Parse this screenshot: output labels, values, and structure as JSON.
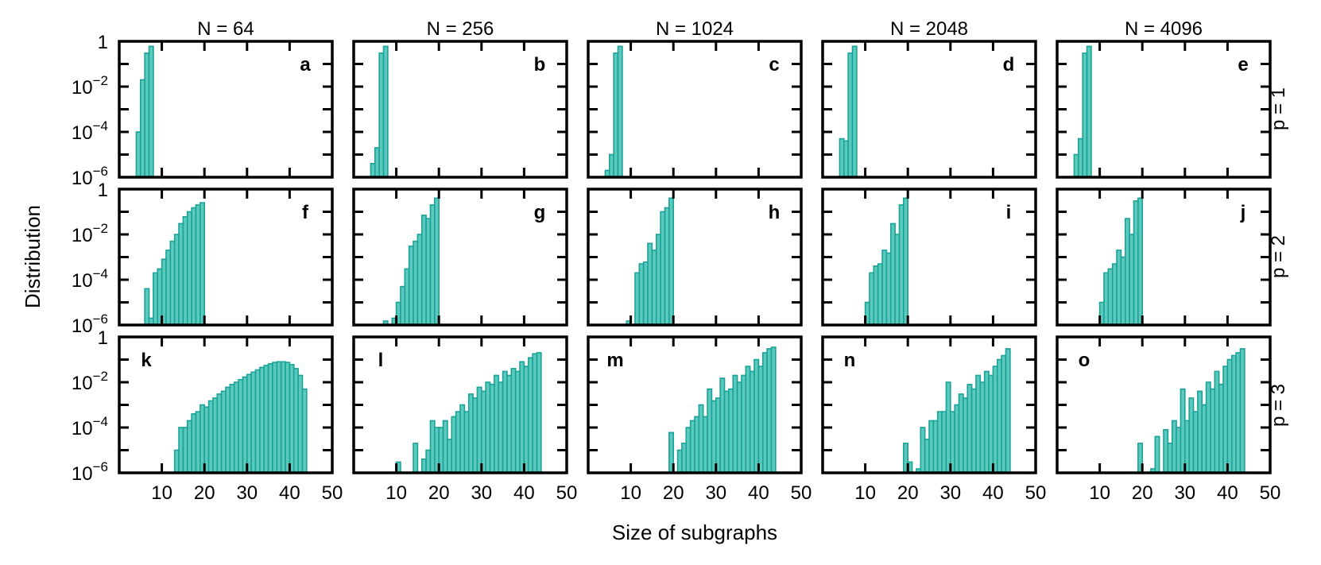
{
  "figure": {
    "xlabel": "Size of subgraphs",
    "ylabel": "Distribution",
    "bar_color": "#5cc9bd",
    "bar_edge_color": "#19a398"
  },
  "columns": [
    "N = 64",
    "N = 256",
    "N = 1024",
    "N = 2048",
    "N = 4096"
  ],
  "rows": [
    "p = 1",
    "p = 2",
    "p = 3"
  ],
  "chart_data": [
    {
      "type": "bar",
      "panel": "a",
      "title": "N = 64",
      "row": "p = 1",
      "xlabel": "Size of subgraphs",
      "ylabel": "Distribution",
      "xlim": [
        0,
        50
      ],
      "ylim": [
        1e-06,
        1
      ],
      "yscale": "log",
      "bin_width": 1,
      "x": [
        4,
        5,
        6,
        7
      ],
      "values": [
        0.0001,
        0.02,
        0.3,
        0.6
      ]
    },
    {
      "type": "bar",
      "panel": "b",
      "title": "N = 256",
      "row": "p = 1",
      "xlabel": "Size of subgraphs",
      "ylabel": "Distribution",
      "xlim": [
        0,
        50
      ],
      "ylim": [
        1e-06,
        1
      ],
      "yscale": "log",
      "bin_width": 1,
      "x": [
        4,
        5,
        6,
        7
      ],
      "values": [
        4e-06,
        2e-05,
        0.3,
        0.6
      ]
    },
    {
      "type": "bar",
      "panel": "c",
      "title": "N = 1024",
      "row": "p = 1",
      "xlabel": "Size of subgraphs",
      "ylabel": "Distribution",
      "xlim": [
        0,
        50
      ],
      "ylim": [
        1e-06,
        1
      ],
      "yscale": "log",
      "bin_width": 1,
      "x": [
        4,
        5,
        6,
        7
      ],
      "values": [
        2e-06,
        1e-05,
        0.3,
        0.6
      ]
    },
    {
      "type": "bar",
      "panel": "d",
      "title": "N = 2048",
      "row": "p = 1",
      "xlabel": "Size of subgraphs",
      "ylabel": "Distribution",
      "xlim": [
        0,
        50
      ],
      "ylim": [
        1e-06,
        1
      ],
      "yscale": "log",
      "bin_width": 1,
      "x": [
        4,
        5,
        6,
        7
      ],
      "values": [
        5e-05,
        4e-05,
        0.3,
        0.6
      ]
    },
    {
      "type": "bar",
      "panel": "e",
      "title": "N = 4096",
      "row": "p = 1",
      "xlabel": "Size of subgraphs",
      "ylabel": "Distribution",
      "xlim": [
        0,
        50
      ],
      "ylim": [
        1e-06,
        1
      ],
      "yscale": "log",
      "bin_width": 1,
      "x": [
        4,
        5,
        6,
        7
      ],
      "values": [
        1e-05,
        5e-05,
        0.3,
        0.6
      ]
    },
    {
      "type": "bar",
      "panel": "f",
      "title": "N = 64",
      "row": "p = 2",
      "xlabel": "Size of subgraphs",
      "ylabel": "Distribution",
      "xlim": [
        0,
        50
      ],
      "ylim": [
        1e-06,
        1
      ],
      "yscale": "log",
      "bin_width": 1,
      "x": [
        6,
        7,
        8,
        9,
        10,
        11,
        12,
        13,
        14,
        15,
        16,
        17,
        18,
        19
      ],
      "values": [
        4e-05,
        2e-06,
        0.0002,
        0.0003,
        0.0008,
        0.002,
        0.005,
        0.01,
        0.03,
        0.06,
        0.1,
        0.15,
        0.2,
        0.25
      ]
    },
    {
      "type": "bar",
      "panel": "g",
      "title": "N = 256",
      "row": "p = 2",
      "xlabel": "Size of subgraphs",
      "ylabel": "Distribution",
      "xlim": [
        0,
        50
      ],
      "ylim": [
        1e-06,
        1
      ],
      "yscale": "log",
      "bin_width": 1,
      "x": [
        6,
        7,
        8,
        9,
        10,
        11,
        12,
        13,
        14,
        15,
        16,
        17,
        18,
        19
      ],
      "values": [
        1e-06,
        1.5e-06,
        1e-06,
        2e-06,
        1e-05,
        5e-05,
        0.0003,
        0.003,
        0.005,
        0.01,
        0.07,
        0.05,
        0.2,
        0.4
      ]
    },
    {
      "type": "bar",
      "panel": "h",
      "title": "N = 1024",
      "row": "p = 2",
      "xlabel": "Size of subgraphs",
      "ylabel": "Distribution",
      "xlim": [
        0,
        50
      ],
      "ylim": [
        1e-06,
        1
      ],
      "yscale": "log",
      "bin_width": 1,
      "x": [
        8,
        9,
        10,
        11,
        12,
        13,
        14,
        15,
        16,
        17,
        18,
        19
      ],
      "values": [
        1e-06,
        1.5e-06,
        1e-06,
        0.0002,
        0.0005,
        0.0006,
        0.004,
        0.002,
        0.01,
        0.1,
        0.15,
        0.4
      ]
    },
    {
      "type": "bar",
      "panel": "i",
      "title": "N = 2048",
      "row": "p = 2",
      "xlabel": "Size of subgraphs",
      "ylabel": "Distribution",
      "xlim": [
        0,
        50
      ],
      "ylim": [
        1e-06,
        1
      ],
      "yscale": "log",
      "bin_width": 1,
      "x": [
        10,
        11,
        12,
        13,
        14,
        15,
        16,
        17,
        18,
        19
      ],
      "values": [
        1e-05,
        0.0002,
        0.0004,
        0.0005,
        0.002,
        0.0015,
        0.03,
        0.01,
        0.2,
        0.4
      ]
    },
    {
      "type": "bar",
      "panel": "j",
      "title": "N = 4096",
      "row": "p = 2",
      "xlabel": "Size of subgraphs",
      "ylabel": "Distribution",
      "xlim": [
        0,
        50
      ],
      "ylim": [
        1e-06,
        1
      ],
      "yscale": "log",
      "bin_width": 1,
      "x": [
        10,
        11,
        12,
        13,
        14,
        15,
        16,
        17,
        18,
        19
      ],
      "values": [
        1e-05,
        0.0002,
        0.0003,
        0.0005,
        0.002,
        0.001,
        0.05,
        0.01,
        0.3,
        0.4
      ]
    },
    {
      "type": "bar",
      "panel": "k",
      "title": "N = 64",
      "row": "p = 3",
      "xlabel": "Size of subgraphs",
      "ylabel": "Distribution",
      "xlim": [
        0,
        50
      ],
      "ylim": [
        1e-06,
        1
      ],
      "yscale": "log",
      "bin_width": 1,
      "x": [
        13,
        14,
        15,
        16,
        17,
        18,
        19,
        20,
        21,
        22,
        23,
        24,
        25,
        26,
        27,
        28,
        29,
        30,
        31,
        32,
        33,
        34,
        35,
        36,
        37,
        38,
        39,
        40,
        41,
        42,
        43
      ],
      "values": [
        1e-05,
        0.0001,
        0.0001,
        0.0002,
        0.0004,
        0.0005,
        0.001,
        0.0008,
        0.0015,
        0.002,
        0.003,
        0.004,
        0.006,
        0.008,
        0.01,
        0.013,
        0.017,
        0.022,
        0.028,
        0.035,
        0.045,
        0.055,
        0.065,
        0.075,
        0.08,
        0.08,
        0.075,
        0.06,
        0.04,
        0.02,
        0.005
      ]
    },
    {
      "type": "bar",
      "panel": "l",
      "title": "N = 256",
      "row": "p = 3",
      "xlabel": "Size of subgraphs",
      "ylabel": "Distribution",
      "xlim": [
        0,
        50
      ],
      "ylim": [
        1e-06,
        1
      ],
      "yscale": "log",
      "bin_width": 1,
      "x": [
        9,
        10,
        11,
        12,
        13,
        14,
        15,
        16,
        17,
        18,
        19,
        20,
        21,
        22,
        23,
        24,
        25,
        26,
        27,
        28,
        29,
        30,
        31,
        32,
        33,
        34,
        35,
        36,
        37,
        38,
        39,
        40,
        41,
        42,
        43
      ],
      "values": [
        1e-06,
        3e-06,
        1e-06,
        1e-06,
        1e-06,
        2e-05,
        1e-06,
        4e-06,
        1e-05,
        0.0002,
        0.0001,
        0.0001,
        0.0002,
        3e-05,
        0.0003,
        0.0005,
        0.001,
        0.0005,
        0.003,
        0.002,
        0.006,
        0.004,
        0.01,
        0.008,
        0.02,
        0.01,
        0.03,
        0.02,
        0.04,
        0.03,
        0.08,
        0.05,
        0.12,
        0.18,
        0.2
      ]
    },
    {
      "type": "bar",
      "panel": "m",
      "title": "N = 1024",
      "row": "p = 3",
      "xlabel": "Size of subgraphs",
      "ylabel": "Distribution",
      "xlim": [
        0,
        50
      ],
      "ylim": [
        1e-06,
        1
      ],
      "yscale": "log",
      "bin_width": 1,
      "x": [
        19,
        20,
        21,
        22,
        23,
        24,
        25,
        26,
        27,
        28,
        29,
        30,
        31,
        32,
        33,
        34,
        35,
        36,
        37,
        38,
        39,
        40,
        41,
        42,
        43
      ],
      "values": [
        6e-05,
        1e-06,
        1e-05,
        2e-05,
        0.0001,
        0.0002,
        0.0003,
        0.001,
        0.0003,
        0.005,
        0.0015,
        0.002,
        0.015,
        0.004,
        0.005,
        0.02,
        0.01,
        0.02,
        0.05,
        0.03,
        0.1,
        0.05,
        0.2,
        0.3,
        0.35
      ]
    },
    {
      "type": "bar",
      "panel": "n",
      "title": "N = 2048",
      "row": "p = 3",
      "xlabel": "Size of subgraphs",
      "ylabel": "Distribution",
      "xlim": [
        0,
        50
      ],
      "ylim": [
        1e-06,
        1
      ],
      "yscale": "log",
      "bin_width": 1,
      "x": [
        19,
        20,
        21,
        22,
        23,
        24,
        25,
        26,
        27,
        28,
        29,
        30,
        31,
        32,
        33,
        34,
        35,
        36,
        37,
        38,
        39,
        40,
        41,
        42,
        43
      ],
      "values": [
        2e-05,
        3e-06,
        1e-06,
        1.5e-06,
        0.0001,
        3e-05,
        0.0002,
        0.0002,
        0.0005,
        0.0005,
        0.01,
        0.0005,
        0.001,
        0.003,
        0.002,
        0.008,
        0.005,
        0.02,
        0.01,
        0.03,
        0.02,
        0.05,
        0.1,
        0.15,
        0.3
      ]
    },
    {
      "type": "bar",
      "panel": "o",
      "title": "N = 4096",
      "row": "p = 3",
      "xlabel": "Size of subgraphs",
      "ylabel": "Distribution",
      "xlim": [
        0,
        50
      ],
      "ylim": [
        1e-06,
        1
      ],
      "yscale": "log",
      "bin_width": 1,
      "x": [
        19,
        20,
        21,
        22,
        23,
        24,
        25,
        26,
        27,
        28,
        29,
        30,
        31,
        32,
        33,
        34,
        35,
        36,
        37,
        38,
        39,
        40,
        41,
        42,
        43
      ],
      "values": [
        2e-05,
        1e-06,
        1e-06,
        1.5e-06,
        4e-05,
        1e-06,
        8e-05,
        2e-05,
        0.0002,
        0.0001,
        0.005,
        0.0002,
        0.002,
        0.0005,
        0.004,
        0.001,
        0.01,
        0.005,
        0.03,
        0.008,
        0.05,
        0.1,
        0.15,
        0.2,
        0.3
      ]
    }
  ]
}
